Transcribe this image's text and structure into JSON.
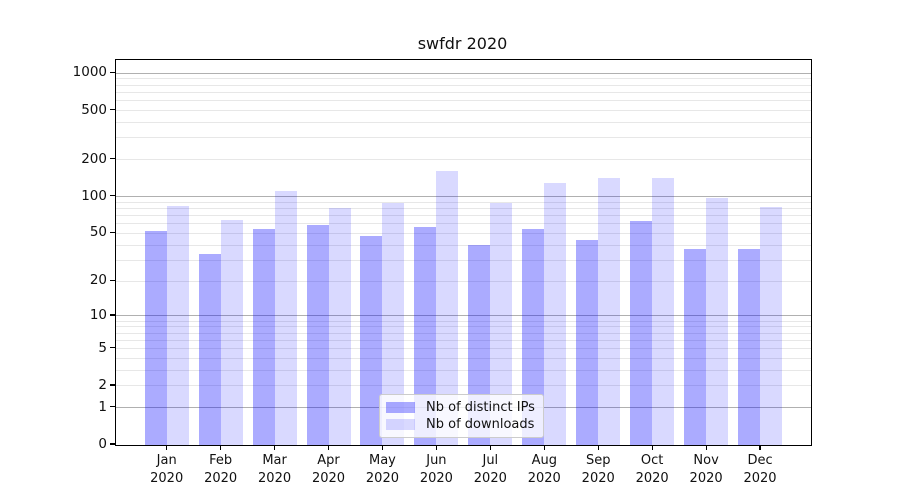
{
  "chart_data": {
    "type": "bar",
    "title": "swfdr 2020",
    "months": [
      "Jan",
      "Feb",
      "Mar",
      "Apr",
      "May",
      "Jun",
      "Jul",
      "Aug",
      "Sep",
      "Oct",
      "Nov",
      "Dec"
    ],
    "year_label": "2020",
    "series": [
      {
        "name": "Nb of distinct IPs",
        "color": "rgba(0,0,255,0.33)",
        "values": [
          52,
          34,
          54,
          59,
          48,
          56,
          40,
          54,
          44,
          63,
          37,
          37
        ]
      },
      {
        "name": "Nb of downloads",
        "color": "rgba(0,0,255,0.15)",
        "values": [
          84,
          64,
          112,
          81,
          89,
          163,
          88,
          129,
          141,
          142,
          97,
          82
        ]
      }
    ],
    "yscale": "log1p",
    "ylim": [
      0,
      1280
    ],
    "yticks": [
      0,
      1,
      2,
      5,
      10,
      20,
      50,
      100,
      200,
      500,
      1000
    ],
    "major_gridlines": [
      1,
      10,
      100,
      1000
    ],
    "minor_gridlines": [
      2,
      3,
      4,
      5,
      6,
      7,
      8,
      9,
      20,
      30,
      40,
      50,
      60,
      70,
      80,
      90,
      200,
      300,
      400,
      500,
      600,
      700,
      800,
      900
    ],
    "legend_position": "lower center",
    "grid": true,
    "colors": {
      "grid_major": "#b0b0b0",
      "grid_minor": "#e7e7e7",
      "axis": "#000000",
      "text": "#111111"
    }
  }
}
